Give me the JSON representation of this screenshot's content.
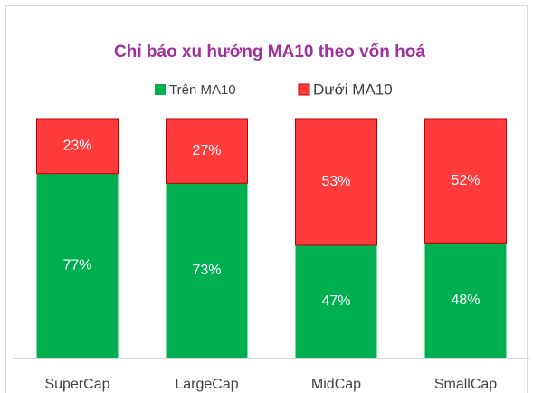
{
  "chart_data": {
    "type": "stacked_bar",
    "title": "Chỉ báo xu hướng MA10 theo vốn hoá",
    "categories": [
      "SuperCap",
      "LargeCap",
      "MidCap",
      "SmallCap"
    ],
    "series": [
      {
        "name": "Trên MA10",
        "color": "#00b050",
        "values": [
          77,
          73,
          47,
          48
        ],
        "value_labels": [
          "77%",
          "73%",
          "47%",
          "48%"
        ]
      },
      {
        "name": "Dưới MA10",
        "color": "#ff3b3b",
        "values": [
          23,
          27,
          53,
          52
        ],
        "value_labels": [
          "23%",
          "27%",
          "53%",
          "52%"
        ]
      }
    ],
    "legend": "top"
  }
}
